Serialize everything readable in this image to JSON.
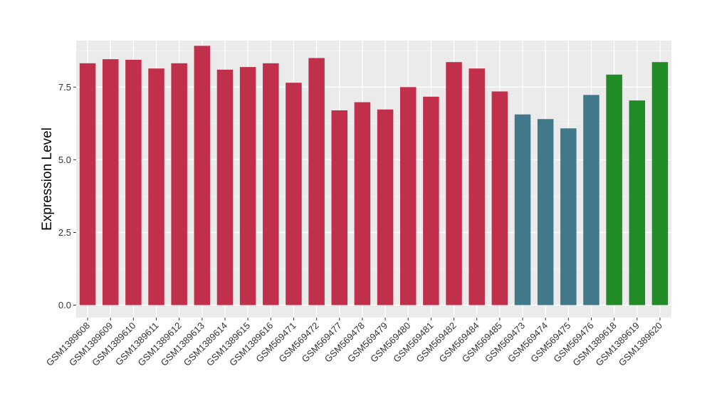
{
  "chart_data": {
    "type": "bar",
    "title": "",
    "xlabel": "",
    "ylabel": "Expression Level",
    "ylim": [
      0,
      9.1
    ],
    "yticks": [
      0,
      2.5,
      5,
      7.5
    ],
    "ytick_labels": [
      "0.0",
      "2.5",
      "5.0",
      "7.5"
    ],
    "grid": true,
    "legend": "none",
    "group_colors": [
      "#c0304a",
      "#41788a",
      "#238b25"
    ],
    "categories": [
      "GSM1389608",
      "GSM1389609",
      "GSM1389610",
      "GSM1389611",
      "GSM1389612",
      "GSM1389613",
      "GSM1389614",
      "GSM1389615",
      "GSM1389616",
      "GSM569471",
      "GSM569472",
      "GSM569477",
      "GSM569478",
      "GSM569479",
      "GSM569480",
      "GSM569481",
      "GSM569482",
      "GSM569484",
      "GSM569485",
      "GSM569473",
      "GSM569474",
      "GSM569475",
      "GSM569476",
      "GSM1389618",
      "GSM1389619",
      "GSM1389620"
    ],
    "values": [
      8.32,
      8.46,
      8.44,
      8.14,
      8.32,
      8.92,
      8.1,
      8.19,
      8.32,
      7.65,
      8.5,
      6.7,
      6.98,
      6.73,
      7.5,
      7.17,
      8.36,
      8.14,
      7.35,
      6.56,
      6.4,
      6.08,
      7.23,
      7.93,
      7.04,
      8.36
    ],
    "bar_group": [
      0,
      0,
      0,
      0,
      0,
      0,
      0,
      0,
      0,
      0,
      0,
      0,
      0,
      0,
      0,
      0,
      0,
      0,
      0,
      1,
      1,
      1,
      1,
      2,
      2,
      2
    ]
  }
}
